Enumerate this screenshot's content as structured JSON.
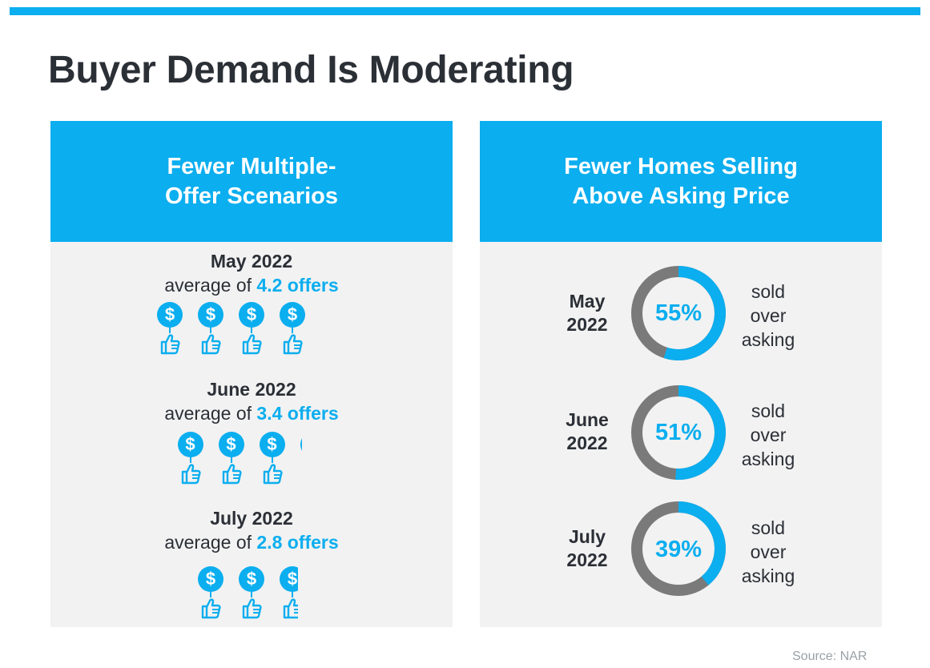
{
  "title": "Buyer Demand Is Moderating",
  "colors": {
    "accent": "#0baeef",
    "ring_track": "#7a7a7a",
    "panel_bg": "#f2f2f2",
    "text": "#2b2f36"
  },
  "left_panel": {
    "heading_line1": "Fewer Multiple-",
    "heading_line2": "Offer Scenarios",
    "icon": "dollar-coin-thumbs-up-icon",
    "rows": [
      {
        "month": "May 2022",
        "prefix": "average of ",
        "highlight": "4.2 offers",
        "offers": 4.2
      },
      {
        "month": "June 2022",
        "prefix": "average of ",
        "highlight": "3.4 offers",
        "offers": 3.4
      },
      {
        "month": "July 2022",
        "prefix": "average of ",
        "highlight": "2.8 offers",
        "offers": 2.8
      }
    ]
  },
  "right_panel": {
    "heading_line1": "Fewer Homes Selling",
    "heading_line2": "Above Asking Price",
    "rows": [
      {
        "label_line1": "May",
        "label_line2": "2022",
        "value_text": "55%",
        "value": 55,
        "desc_line1": "sold",
        "desc_line2": "over",
        "desc_line3": "asking"
      },
      {
        "label_line1": "June",
        "label_line2": "2022",
        "value_text": "51%",
        "value": 51,
        "desc_line1": "sold",
        "desc_line2": "over",
        "desc_line3": "asking"
      },
      {
        "label_line1": "July",
        "label_line2": "2022",
        "value_text": "39%",
        "value": 39,
        "desc_line1": "sold",
        "desc_line2": "over",
        "desc_line3": "asking"
      }
    ]
  },
  "source": "Source: NAR",
  "chart_data": [
    {
      "type": "bar",
      "title": "Fewer Multiple-Offer Scenarios",
      "categories": [
        "May 2022",
        "June 2022",
        "July 2022"
      ],
      "values": [
        4.2,
        3.4,
        2.8
      ]
    },
    {
      "type": "pie",
      "title": "Fewer Homes Selling Above Asking Price",
      "categories": [
        "May 2022",
        "June 2022",
        "July 2022"
      ],
      "values": [
        55,
        51,
        39
      ]
    }
  ]
}
